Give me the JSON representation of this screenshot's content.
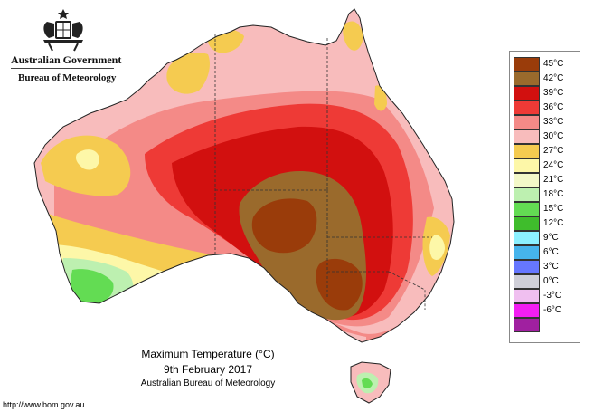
{
  "header": {
    "government": "Australian Government",
    "bureau": "Bureau of Meteorology"
  },
  "map": {
    "title": "Maximum Temperature (°C)",
    "date": "9th February 2017",
    "source": "Australian Bureau of Meteorology",
    "url": "http://www.bom.gov.au"
  },
  "legend": [
    {
      "label": "45°C",
      "color": "#9a3c0a"
    },
    {
      "label": "42°C",
      "color": "#9a6a2c"
    },
    {
      "label": "39°C",
      "color": "#d2100f"
    },
    {
      "label": "36°C",
      "color": "#ee3a36"
    },
    {
      "label": "33°C",
      "color": "#f48a87"
    },
    {
      "label": "30°C",
      "color": "#f8bcbc"
    },
    {
      "label": "27°C",
      "color": "#f5cb50"
    },
    {
      "label": "24°C",
      "color": "#fdf7a8"
    },
    {
      "label": "21°C",
      "color": "#f3f8c8"
    },
    {
      "label": "18°C",
      "color": "#bdf0b0"
    },
    {
      "label": "15°C",
      "color": "#63dc53"
    },
    {
      "label": "12°C",
      "color": "#3fbd2c"
    },
    {
      "label": "9°C",
      "color": "#8cf0ff"
    },
    {
      "label": "6°C",
      "color": "#46b4ec"
    },
    {
      "label": "3°C",
      "color": "#6677ff"
    },
    {
      "label": "0°C",
      "color": "#cfcfd8"
    },
    {
      "label": "-3°C",
      "color": "#f0bff0"
    },
    {
      "label": "-6°C",
      "color": "#f21ef2"
    },
    {
      "label": "",
      "color": "#a020a0"
    }
  ]
}
